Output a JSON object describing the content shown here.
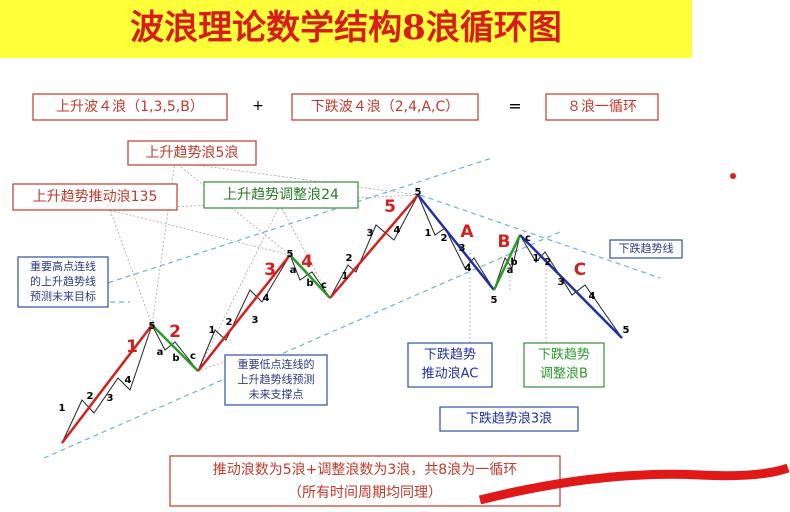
{
  "title": "波浪理论数学结构8浪循环图",
  "equation": {
    "left": "上升波４浪（1,3,5,B）",
    "plus": "+",
    "middle": "下跌波４浪（2,4,A,C）",
    "equals": "=",
    "right": "８浪一循环"
  },
  "callouts": {
    "up_trend_5": "上升趋势浪5浪",
    "up_impulse": "上升趋势推动浪135",
    "up_correction": "上升趋势调整浪24",
    "high_line": [
      "重要高点连线",
      "的上升趋势线",
      "预测未来目标"
    ],
    "low_line": [
      "重要低点连线的",
      "上升趋势线预测",
      "未来支撑点"
    ],
    "down_line": "下跌趋势线",
    "down_impulse": [
      "下跌趋势",
      "推动浪AC"
    ],
    "down_correction": [
      "下跌趋势",
      "调整浪B"
    ],
    "down_3": "下跌趋势浪3浪"
  },
  "wave_labels": [
    "1",
    "2",
    "3",
    "4",
    "5",
    "A",
    "B",
    "C"
  ],
  "sub_labels": [
    "1",
    "2",
    "3",
    "4",
    "5",
    "a",
    "b",
    "c",
    "1",
    "2",
    "3",
    "4",
    "5",
    "a",
    "b",
    "c",
    "1",
    "2",
    "3",
    "4",
    "5",
    "1",
    "2",
    "3",
    "4",
    "5",
    "a",
    "b",
    "c",
    "1",
    "2",
    "3",
    "4",
    "5"
  ],
  "footer": [
    "推动浪数为5浪+调整浪数为3浪，共8浪为一循环",
    "（所有时间周期均同理）"
  ]
}
